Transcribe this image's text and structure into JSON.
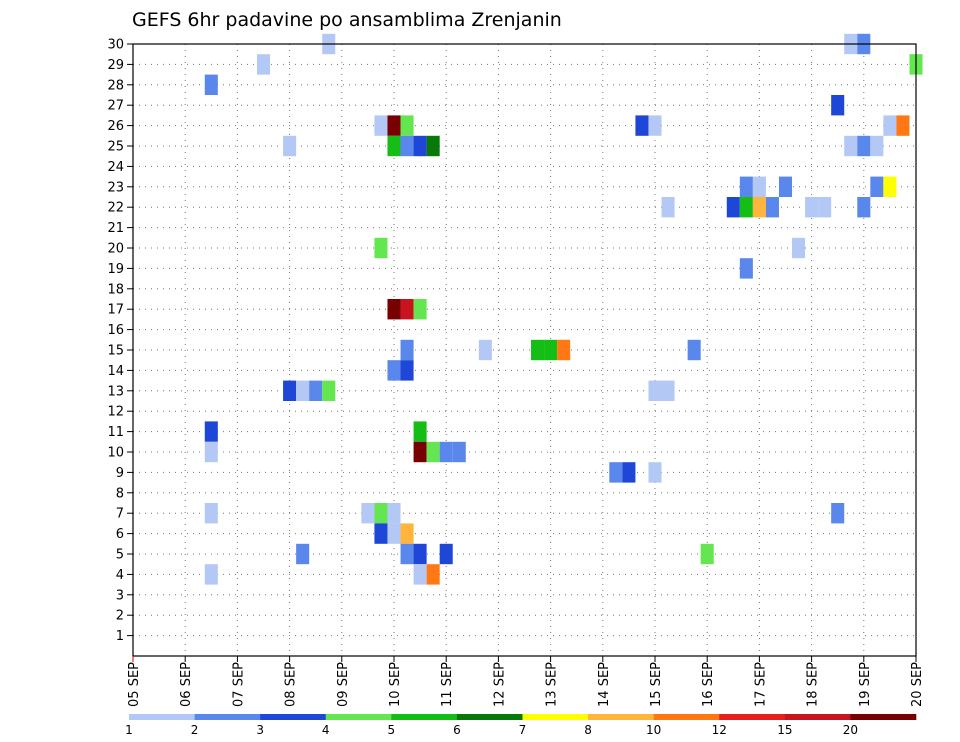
{
  "chart_data": {
    "type": "heatmap",
    "title": "GEFS 6hr padavine po ansamblima Zrenjanin",
    "x_tick_labels": [
      "05 SEP",
      "06 SEP",
      "07 SEP",
      "08 SEP",
      "09 SEP",
      "10 SEP",
      "11 SEP",
      "12 SEP",
      "13 SEP",
      "14 SEP",
      "15 SEP",
      "16 SEP",
      "17 SEP",
      "18 SEP",
      "19 SEP",
      "20 SEP"
    ],
    "x_range_days": [
      0,
      15
    ],
    "x_step_hours": 6,
    "y_tick_labels": [
      "1",
      "2",
      "3",
      "4",
      "5",
      "6",
      "7",
      "8",
      "9",
      "10",
      "11",
      "12",
      "13",
      "14",
      "15",
      "16",
      "17",
      "18",
      "19",
      "20",
      "21",
      "22",
      "23",
      "24",
      "25",
      "26",
      "27",
      "28",
      "29",
      "30"
    ],
    "y_range": [
      0,
      30
    ],
    "grid": true,
    "legend": {
      "position": "bottom",
      "levels": [
        "1",
        "2",
        "3",
        "4",
        "5",
        "6",
        "7",
        "8",
        "10",
        "12",
        "15",
        "20"
      ],
      "colors": [
        "#b4c8f5",
        "#5a87eb",
        "#1e46d7",
        "#64e650",
        "#14be14",
        "#087808",
        "#ffff00",
        "#ffb43c",
        "#ff7814",
        "#e61e1e",
        "#c8141e",
        "#780000"
      ]
    },
    "cells": [
      [
        3.75,
        30,
        0
      ],
      [
        13.75,
        30,
        0
      ],
      [
        14,
        30,
        1
      ],
      [
        2.5,
        29,
        0
      ],
      [
        15,
        29,
        3
      ],
      [
        1.5,
        28,
        1
      ],
      [
        13.5,
        27,
        2
      ],
      [
        4.75,
        26,
        0
      ],
      [
        5,
        26,
        11
      ],
      [
        5.25,
        26,
        3
      ],
      [
        9.75,
        26,
        2
      ],
      [
        10,
        26,
        0
      ],
      [
        14.5,
        26,
        0
      ],
      [
        14.75,
        26,
        8
      ],
      [
        3,
        25,
        0
      ],
      [
        5,
        25,
        4
      ],
      [
        5.25,
        25,
        1
      ],
      [
        5.5,
        25,
        2
      ],
      [
        5.75,
        25,
        5
      ],
      [
        13.75,
        25,
        0
      ],
      [
        14,
        25,
        1
      ],
      [
        14.25,
        25,
        0
      ],
      [
        11.75,
        23,
        1
      ],
      [
        12,
        23,
        0
      ],
      [
        12.5,
        23,
        1
      ],
      [
        14.25,
        23,
        1
      ],
      [
        14.5,
        23,
        6
      ],
      [
        10.25,
        22,
        0
      ],
      [
        11.5,
        22,
        2
      ],
      [
        11.75,
        22,
        4
      ],
      [
        12,
        22,
        7
      ],
      [
        12.25,
        22,
        1
      ],
      [
        13,
        22,
        0
      ],
      [
        13.25,
        22,
        0
      ],
      [
        14,
        22,
        1
      ],
      [
        4.75,
        20,
        3
      ],
      [
        12.75,
        20,
        0
      ],
      [
        11.75,
        19,
        1
      ],
      [
        5,
        17,
        11
      ],
      [
        5.25,
        17,
        10
      ],
      [
        5.5,
        17,
        3
      ],
      [
        5.25,
        15,
        1
      ],
      [
        6.75,
        15,
        0
      ],
      [
        7.75,
        15,
        4
      ],
      [
        8,
        15,
        4
      ],
      [
        8.25,
        15,
        8
      ],
      [
        10.75,
        15,
        1
      ],
      [
        5,
        14,
        1
      ],
      [
        5.25,
        14,
        2
      ],
      [
        3,
        13,
        2
      ],
      [
        3.25,
        13,
        0
      ],
      [
        3.5,
        13,
        1
      ],
      [
        3.75,
        13,
        3
      ],
      [
        10,
        13,
        0
      ],
      [
        10.25,
        13,
        0
      ],
      [
        1.5,
        11,
        2
      ],
      [
        5.5,
        11,
        4
      ],
      [
        1.5,
        10,
        0
      ],
      [
        5.5,
        10,
        11
      ],
      [
        5.75,
        10,
        3
      ],
      [
        6,
        10,
        1
      ],
      [
        6.25,
        10,
        1
      ],
      [
        9.25,
        9,
        1
      ],
      [
        9.5,
        9,
        2
      ],
      [
        10,
        9,
        0
      ],
      [
        1.5,
        7,
        0
      ],
      [
        4.5,
        7,
        0
      ],
      [
        4.75,
        7,
        3
      ],
      [
        5,
        7,
        0
      ],
      [
        13.5,
        7,
        1
      ],
      [
        4.75,
        6,
        2
      ],
      [
        5,
        6,
        0
      ],
      [
        5.25,
        6,
        7
      ],
      [
        3.25,
        5,
        1
      ],
      [
        5.25,
        5,
        1
      ],
      [
        5.5,
        5,
        2
      ],
      [
        6,
        5,
        2
      ],
      [
        11,
        5,
        3
      ],
      [
        1.5,
        4,
        0
      ],
      [
        5.5,
        4,
        0
      ],
      [
        5.75,
        4,
        8
      ]
    ]
  }
}
